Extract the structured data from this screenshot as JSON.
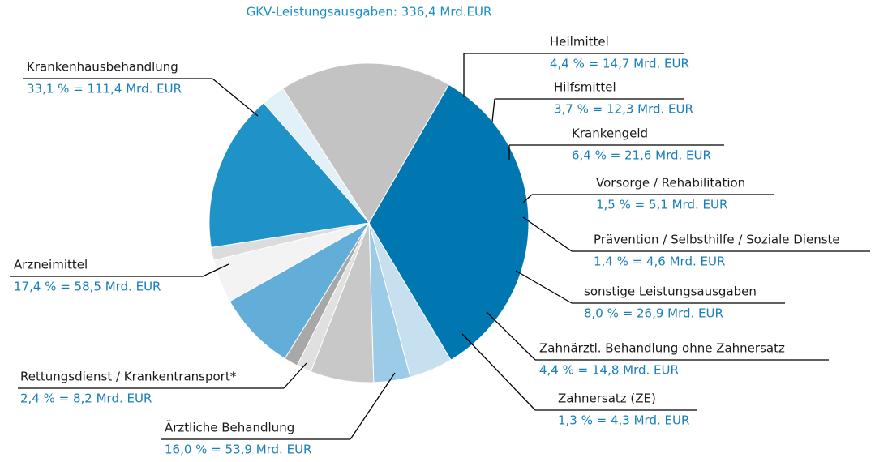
{
  "chart_data": {
    "type": "pie",
    "title": "GKV-Leistungsausgaben: 336,4 Mrd.EUR",
    "categories": [
      "Krankenhausbehandlung",
      "Heilmittel",
      "Hilfsmittel",
      "Krankengeld",
      "Vorsorge / Rehabilitation",
      "Prävention / Selbsthilfe / Soziale Dienste",
      "sonstige Leistungsausgaben",
      "Zahnärztl. Behandlung ohne Zahnersatz",
      "Zahnersatz (ZE)",
      "Ärztliche Behandlung",
      "Rettungsdienst / Krankentransport*",
      "Arzneimittel"
    ],
    "values": [
      33.1,
      4.4,
      3.7,
      6.4,
      1.5,
      1.4,
      8.0,
      4.4,
      1.3,
      16.0,
      2.4,
      17.4
    ],
    "value_labels": [
      "33,1 % = 111,4 Mrd. EUR",
      "4,4 % = 14,7 Mrd. EUR",
      "3,7 % = 12,3 Mrd. EUR",
      "6,4 % = 21,6 Mrd. EUR",
      "1,5 % = 5,1 Mrd. EUR",
      "1,4 % = 4,6 Mrd. EUR",
      "8,0 % = 26,9 Mrd. EUR",
      "4,4 % = 14,8 Mrd. EUR",
      "1,3 % = 4,3 Mrd. EUR",
      "16,0 % = 53,9 Mrd. EUR",
      "2,4 % = 8,2 Mrd. EUR",
      "17,4 % = 58,5 Mrd. EUR"
    ],
    "colors": [
      "#0077b0",
      "#c6e0f0",
      "#9ccbe8",
      "#c8c8c8",
      "#e0e0e0",
      "#a8a8a8",
      "#62aed8",
      "#f3f3f3",
      "#dcdcdc",
      "#1f93c8",
      "#e2f0f8",
      "#c3c3c3"
    ]
  }
}
